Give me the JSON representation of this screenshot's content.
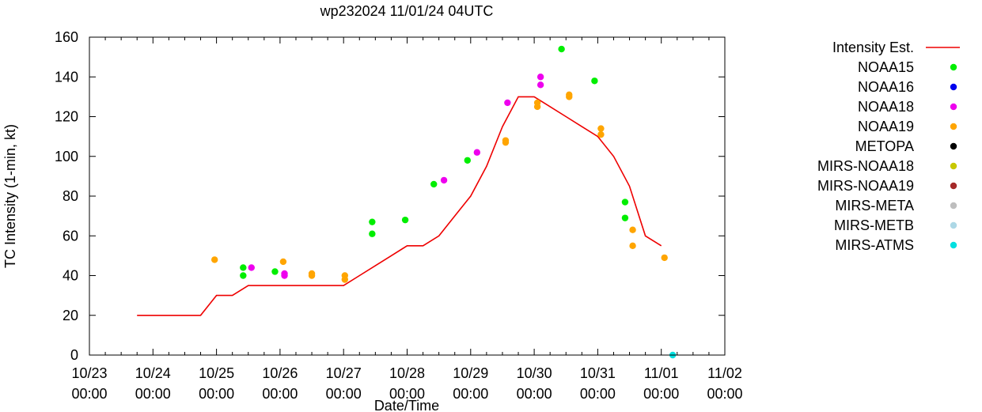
{
  "chart_data": {
    "type": "scatter",
    "title": "wp232024 11/01/24 04UTC",
    "xlabel": "Date/Time",
    "ylabel": "TC Intensity (1-min, kt)",
    "xlim": [
      0,
      10
    ],
    "ylim": [
      0,
      160
    ],
    "x_ticks": [
      {
        "value": 0,
        "date": "10/23",
        "time": "00:00"
      },
      {
        "value": 1,
        "date": "10/24",
        "time": "00:00"
      },
      {
        "value": 2,
        "date": "10/25",
        "time": "00:00"
      },
      {
        "value": 3,
        "date": "10/26",
        "time": "00:00"
      },
      {
        "value": 4,
        "date": "10/27",
        "time": "00:00"
      },
      {
        "value": 5,
        "date": "10/28",
        "time": "00:00"
      },
      {
        "value": 6,
        "date": "10/29",
        "time": "00:00"
      },
      {
        "value": 7,
        "date": "10/30",
        "time": "00:00"
      },
      {
        "value": 8,
        "date": "10/31",
        "time": "00:00"
      },
      {
        "value": 9,
        "date": "11/01",
        "time": "00:00"
      },
      {
        "value": 10,
        "date": "11/02",
        "time": "00:00"
      }
    ],
    "y_ticks": [
      0,
      20,
      40,
      60,
      80,
      100,
      120,
      140,
      160
    ],
    "x_units": "days since 10/23 00:00",
    "intensity_line": {
      "name": "Intensity Est.",
      "color": "#ee0000",
      "points": [
        [
          0.75,
          20
        ],
        [
          1.75,
          20
        ],
        [
          2.0,
          30
        ],
        [
          2.25,
          30
        ],
        [
          2.5,
          35
        ],
        [
          3.0,
          35
        ],
        [
          3.5,
          35
        ],
        [
          4.0,
          35
        ],
        [
          4.25,
          40
        ],
        [
          4.5,
          45
        ],
        [
          4.75,
          50
        ],
        [
          5.0,
          55
        ],
        [
          5.25,
          55
        ],
        [
          5.5,
          60
        ],
        [
          5.75,
          70
        ],
        [
          6.0,
          80
        ],
        [
          6.25,
          95
        ],
        [
          6.5,
          115
        ],
        [
          6.75,
          130
        ],
        [
          7.0,
          130
        ],
        [
          7.25,
          125
        ],
        [
          7.5,
          120
        ],
        [
          7.75,
          115
        ],
        [
          8.0,
          110
        ],
        [
          8.25,
          100
        ],
        [
          8.5,
          85
        ],
        [
          8.75,
          60
        ],
        [
          9.0,
          55
        ]
      ]
    },
    "series": [
      {
        "name": "NOAA15",
        "color": "#00ee00",
        "points": [
          [
            2.42,
            44
          ],
          [
            2.42,
            40
          ],
          [
            2.92,
            42
          ],
          [
            4.45,
            67
          ],
          [
            4.45,
            61
          ],
          [
            4.97,
            68
          ],
          [
            5.42,
            86
          ],
          [
            5.95,
            98
          ],
          [
            7.43,
            154
          ],
          [
            7.95,
            138
          ],
          [
            8.43,
            77
          ],
          [
            8.43,
            69
          ]
        ]
      },
      {
        "name": "NOAA16",
        "color": "#0000ee",
        "points": []
      },
      {
        "name": "NOAA18",
        "color": "#ee00ee",
        "points": [
          [
            2.55,
            44
          ],
          [
            3.07,
            41
          ],
          [
            3.07,
            40
          ],
          [
            5.58,
            88
          ],
          [
            6.1,
            102
          ],
          [
            6.58,
            127
          ],
          [
            7.1,
            140
          ],
          [
            7.1,
            136
          ]
        ]
      },
      {
        "name": "NOAA19",
        "color": "#ffa500",
        "points": [
          [
            1.97,
            48
          ],
          [
            3.05,
            47
          ],
          [
            3.5,
            41
          ],
          [
            3.5,
            40
          ],
          [
            4.02,
            40
          ],
          [
            4.02,
            38
          ],
          [
            6.55,
            108
          ],
          [
            6.55,
            107
          ],
          [
            7.05,
            127
          ],
          [
            7.05,
            125
          ],
          [
            7.55,
            131
          ],
          [
            7.55,
            130
          ],
          [
            8.05,
            114
          ],
          [
            8.05,
            111
          ],
          [
            8.55,
            63
          ],
          [
            8.55,
            55
          ],
          [
            9.05,
            49
          ]
        ]
      },
      {
        "name": "METOPA",
        "color": "#000000",
        "points": []
      },
      {
        "name": "MIRS-NOAA18",
        "color": "#c8c800",
        "points": []
      },
      {
        "name": "MIRS-NOAA19",
        "color": "#a52a2a",
        "points": []
      },
      {
        "name": "MIRS-META",
        "color": "#bebebe",
        "points": []
      },
      {
        "name": "MIRS-METB",
        "color": "#add8e6",
        "points": []
      },
      {
        "name": "MIRS-ATMS",
        "color": "#00e0e0",
        "points": [
          [
            9.18,
            0
          ]
        ]
      }
    ]
  }
}
